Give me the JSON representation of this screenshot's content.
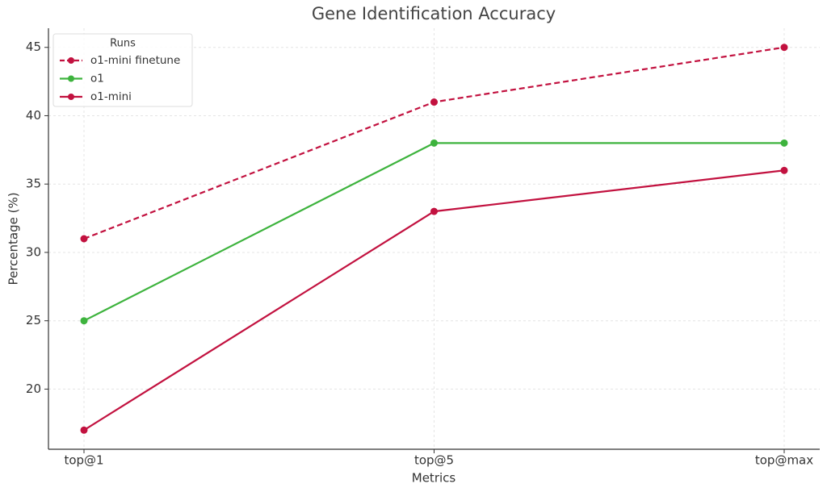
{
  "chart_data": {
    "type": "line",
    "title": "Gene Identification Accuracy",
    "x_label": "Metrics",
    "y_label": "Percentage (%)",
    "categories": [
      "top@1",
      "top@5",
      "top@max"
    ],
    "series": [
      {
        "name": "o1-mini finetune",
        "color": "#c2113f",
        "linestyle": "dashed",
        "values": [
          31,
          41,
          45
        ]
      },
      {
        "name": "o1",
        "color": "#3db33d",
        "linestyle": "solid",
        "values": [
          25,
          38,
          38
        ]
      },
      {
        "name": "o1-mini",
        "color": "#c2113f",
        "linestyle": "solid",
        "values": [
          17,
          33,
          36
        ]
      }
    ],
    "ylim": [
      15.6,
      46.4
    ],
    "yticks": [
      20,
      25,
      30,
      35,
      40,
      45
    ],
    "grid": true,
    "legend_title": "Runs",
    "legend_position": "upper left"
  }
}
